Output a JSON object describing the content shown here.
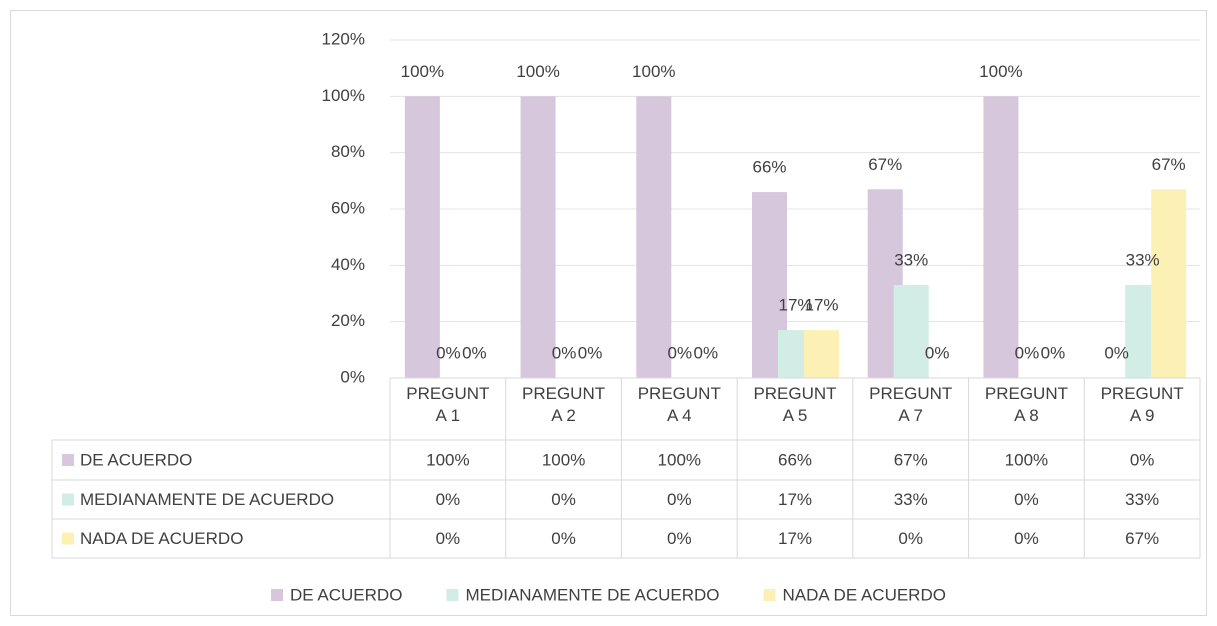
{
  "chart_data": {
    "type": "bar",
    "categories": [
      "PREGUNTA 1",
      "PREGUNTA 2",
      "PREGUNTA 4",
      "PREGUNTA 5",
      "PREGUNTA 7",
      "PREGUNTA 8",
      "PREGUNTA 9"
    ],
    "series": [
      {
        "name": "DE ACUERDO",
        "color": "#d7c7dd",
        "values": [
          100,
          100,
          100,
          66,
          67,
          100,
          0
        ],
        "value_labels": [
          "100%",
          "100%",
          "100%",
          "66%",
          "67%",
          "100%",
          "0%"
        ]
      },
      {
        "name": "MEDIANAMENTE DE ACUERDO",
        "color": "#d2ede5",
        "values": [
          0,
          0,
          0,
          17,
          33,
          0,
          33
        ],
        "value_labels": [
          "0%",
          "0%",
          "0%",
          "17%",
          "33%",
          "0%",
          "33%"
        ]
      },
      {
        "name": "NADA DE ACUERDO",
        "color": "#fdf0b4",
        "values": [
          0,
          0,
          0,
          17,
          0,
          0,
          67
        ],
        "value_labels": [
          "0%",
          "0%",
          "0%",
          "17%",
          "0%",
          "0%",
          "67%"
        ]
      }
    ],
    "ylim": [
      0,
      120
    ],
    "yticks": [
      {
        "value": 0,
        "label": "0%"
      },
      {
        "value": 20,
        "label": "20%"
      },
      {
        "value": 40,
        "label": "40%"
      },
      {
        "value": 60,
        "label": "60%"
      },
      {
        "value": 80,
        "label": "80%"
      },
      {
        "value": 100,
        "label": "100%"
      },
      {
        "value": 120,
        "label": "120%"
      }
    ],
    "grid": true,
    "legend": "bottom",
    "data_table": true
  }
}
